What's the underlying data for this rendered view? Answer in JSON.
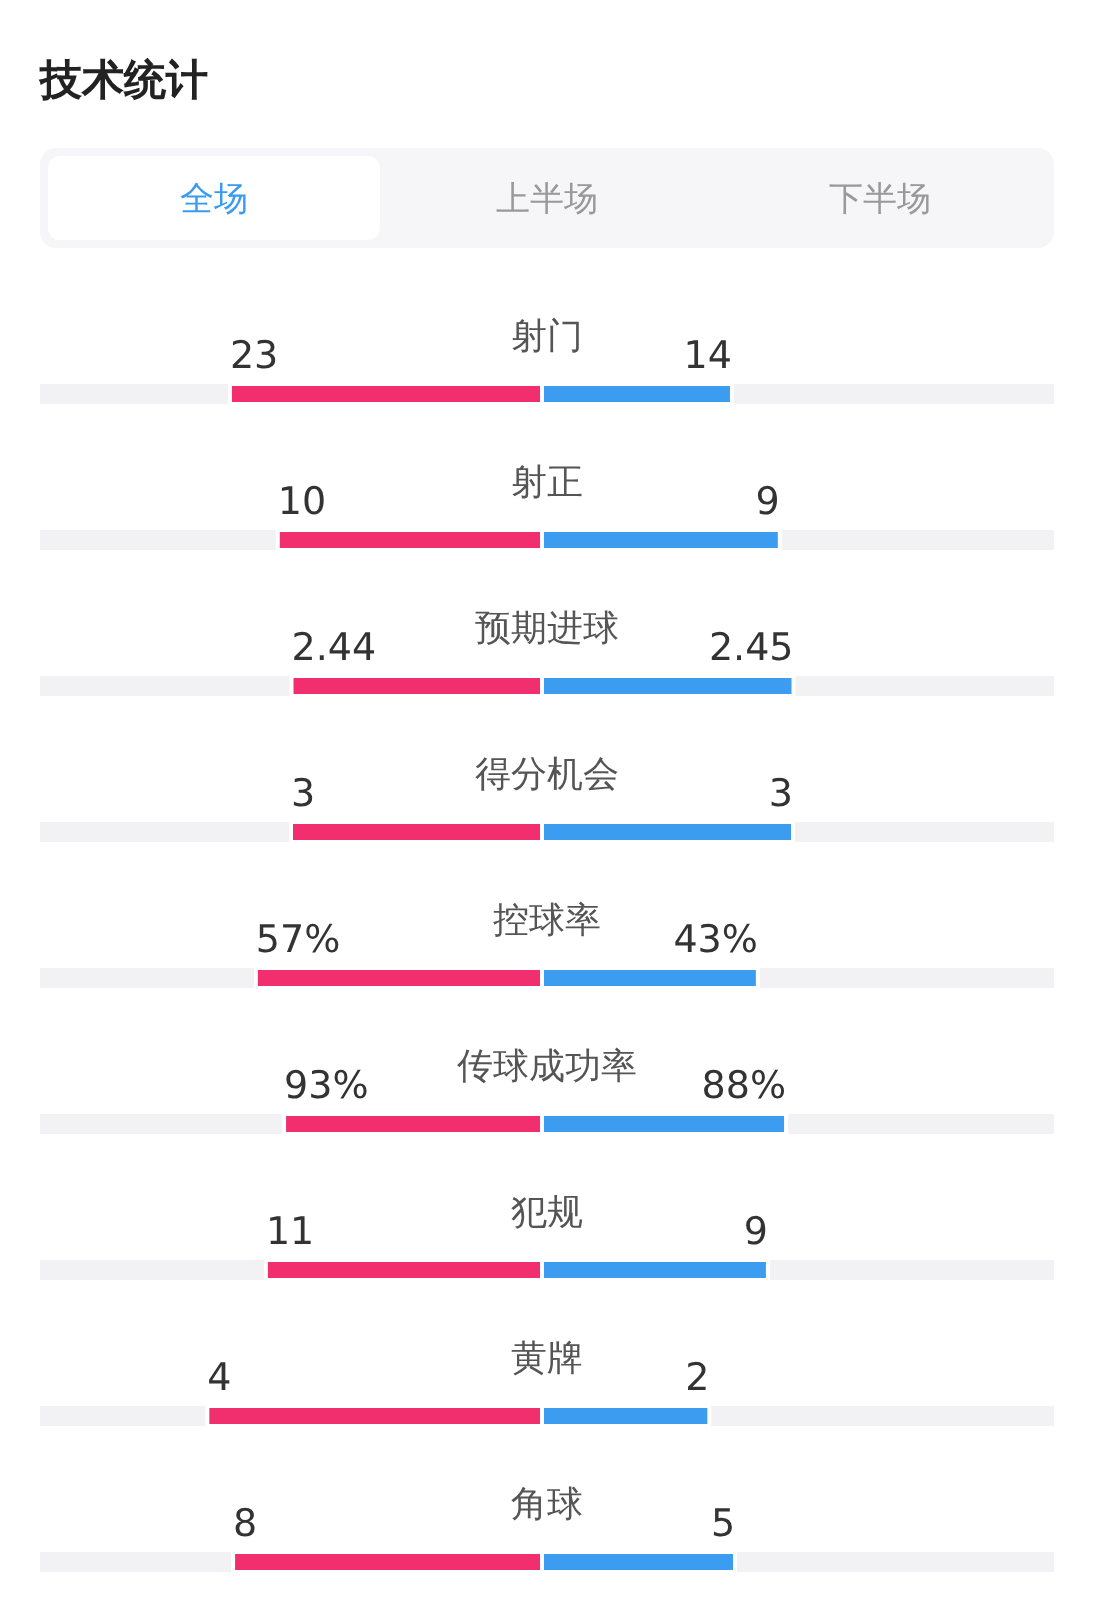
{
  "chart_data": [
    {
      "type": "bar",
      "orientation": "horizontal",
      "stacked": true,
      "title": "技术统计",
      "annotations": [
        "全场",
        "上半场",
        "下半场"
      ],
      "categories": [
        "射门"
      ],
      "data_labels": true,
      "series": [
        {
          "color": "#f22f6e",
          "values": [
            23
          ]
        },
        {
          "color": "#3b9cf0",
          "values": [
            14
          ]
        }
      ]
    },
    {
      "type": "bar",
      "orientation": "horizontal",
      "stacked": true,
      "categories": [
        "射正"
      ],
      "data_labels": true,
      "series": [
        {
          "color": "#f22f6e",
          "values": [
            10
          ]
        },
        {
          "color": "#3b9cf0",
          "values": [
            9
          ]
        }
      ]
    },
    {
      "type": "bar",
      "orientation": "horizontal",
      "stacked": true,
      "categories": [
        "预期进球"
      ],
      "data_labels": true,
      "series": [
        {
          "color": "#f22f6e",
          "values": [
            2.44
          ]
        },
        {
          "color": "#3b9cf0",
          "values": [
            2.45
          ]
        }
      ]
    },
    {
      "type": "bar",
      "orientation": "horizontal",
      "stacked": true,
      "categories": [
        "得分机会"
      ],
      "data_labels": true,
      "series": [
        {
          "color": "#f22f6e",
          "values": [
            3
          ]
        },
        {
          "color": "#3b9cf0",
          "values": [
            3
          ]
        }
      ]
    },
    {
      "type": "bar",
      "orientation": "horizontal",
      "stacked": true,
      "categories": [
        "控球率"
      ],
      "series": [
        {
          "color": "#f22f6e",
          "values": [
            57
          ],
          "value_labels": [
            "57%"
          ]
        },
        {
          "color": "#3b9cf0",
          "values": [
            43
          ],
          "value_labels": [
            "43%"
          ]
        }
      ]
    },
    {
      "type": "bar",
      "orientation": "horizontal",
      "stacked": true,
      "categories": [
        "传球成功率"
      ],
      "series": [
        {
          "color": "#f22f6e",
          "values": [
            93
          ],
          "value_labels": [
            "93%"
          ]
        },
        {
          "color": "#3b9cf0",
          "values": [
            88
          ],
          "value_labels": [
            "88%"
          ]
        }
      ]
    },
    {
      "type": "bar",
      "orientation": "horizontal",
      "stacked": true,
      "categories": [
        "犯规"
      ],
      "data_labels": true,
      "series": [
        {
          "color": "#f22f6e",
          "values": [
            11
          ]
        },
        {
          "color": "#3b9cf0",
          "values": [
            9
          ]
        }
      ]
    },
    {
      "type": "bar",
      "orientation": "horizontal",
      "stacked": true,
      "categories": [
        "黄牌"
      ],
      "data_labels": true,
      "series": [
        {
          "color": "#f22f6e",
          "values": [
            4
          ]
        },
        {
          "color": "#3b9cf0",
          "values": [
            2
          ]
        }
      ]
    },
    {
      "type": "bar",
      "orientation": "horizontal",
      "stacked": true,
      "categories": [
        "角球"
      ],
      "data_labels": true,
      "series": [
        {
          "color": "#f22f6e",
          "values": [
            8
          ]
        },
        {
          "color": "#3b9cf0",
          "values": [
            5
          ]
        }
      ]
    }
  ]
}
